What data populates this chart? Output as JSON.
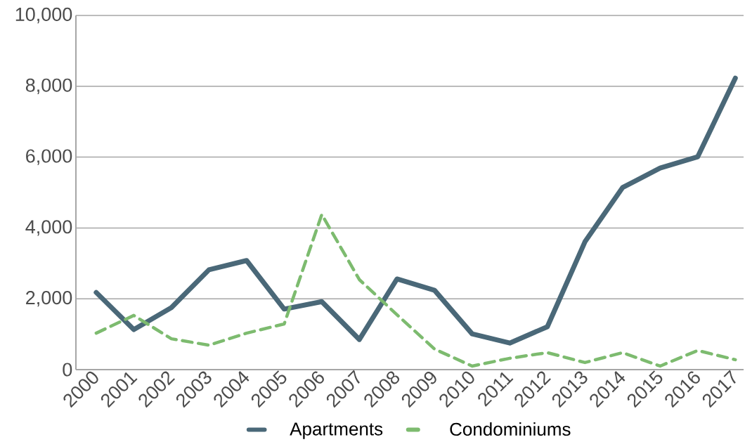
{
  "chart_data": {
    "type": "line",
    "categories": [
      "2000",
      "2001",
      "2002",
      "2003",
      "2004",
      "2005",
      "2006",
      "2007",
      "2008",
      "2009",
      "2010",
      "2011",
      "2012",
      "2013",
      "2014",
      "2015",
      "2016",
      "2017"
    ],
    "series": [
      {
        "name": "Apartments",
        "color": "#4a6878",
        "line_style": "solid",
        "values": [
          2180,
          1130,
          1750,
          2820,
          3080,
          1710,
          1920,
          850,
          2560,
          2240,
          1010,
          750,
          1210,
          3610,
          5140,
          5690,
          6010,
          8230
        ]
      },
      {
        "name": "Condominiums",
        "color": "#7dbb6f",
        "line_style": "dashed",
        "values": [
          1030,
          1530,
          870,
          690,
          1030,
          1290,
          4380,
          2540,
          1550,
          580,
          100,
          320,
          480,
          200,
          480,
          100,
          540,
          280
        ]
      }
    ],
    "ylim": [
      0,
      10000
    ],
    "yticks": [
      0,
      {
        "value": 2000,
        "label": "2,000"
      },
      {
        "value": 4000,
        "label": "4,000"
      },
      {
        "value": 6000,
        "label": "6,000"
      },
      {
        "value": 8000,
        "label": "8,000"
      },
      {
        "value": 10000,
        "label": "10,000"
      }
    ],
    "grid": "y",
    "legend": "bottom",
    "marker": "none"
  }
}
